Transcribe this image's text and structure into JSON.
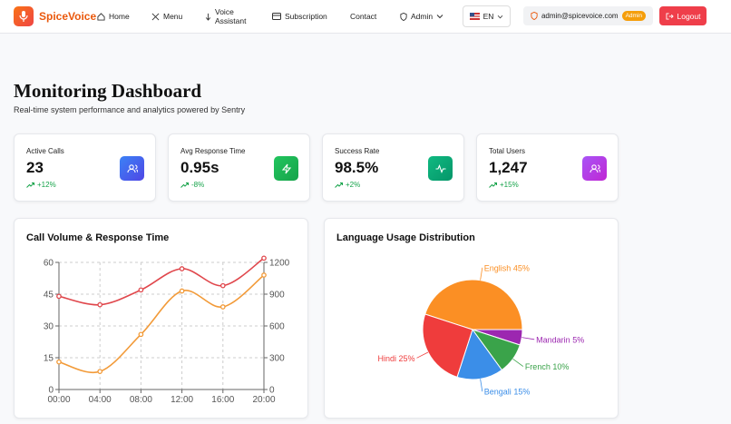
{
  "nav": {
    "brand": "SpiceVoice",
    "links": [
      "Home",
      "Menu",
      "Voice Assistant",
      "Subscription",
      "Contact",
      "Admin"
    ],
    "language": "EN",
    "email": "admin@spicevoice.com",
    "role_badge": "Admin",
    "logout": "Logout"
  },
  "header": {
    "title": "Monitoring Dashboard",
    "subtitle": "Real-time system performance and analytics powered by Sentry"
  },
  "stats": [
    {
      "label": "Active Calls",
      "value": "23",
      "change": "+12%"
    },
    {
      "label": "Avg Response Time",
      "value": "0.95s",
      "change": "-8%"
    },
    {
      "label": "Success Rate",
      "value": "98.5%",
      "change": "+2%"
    },
    {
      "label": "Total Users",
      "value": "1,247",
      "change": "+15%"
    }
  ],
  "charts": [
    {
      "type": "line",
      "title": "Call Volume & Response Time",
      "categories": [
        "00:00",
        "04:00",
        "08:00",
        "12:00",
        "16:00",
        "20:00"
      ],
      "series": [
        {
          "color": "#e0474c",
          "values": [
            44,
            40,
            47,
            57,
            49,
            62
          ]
        },
        {
          "color": "#f29a38",
          "axis": "y2",
          "values": [
            260,
            170,
            520,
            930,
            780,
            1080
          ]
        }
      ],
      "ylim": [
        0,
        60
      ],
      "yticks": [
        0,
        15,
        30,
        45,
        60
      ],
      "y2lim": [
        0,
        1200
      ],
      "y2ticks": [
        0,
        300,
        600,
        900,
        1200
      ],
      "grid": true
    },
    {
      "type": "pie",
      "title": "Language Usage Distribution",
      "categories": [
        "English",
        "Mandarin",
        "French",
        "Bengali",
        "Hindi"
      ],
      "values": [
        45,
        5,
        10,
        15,
        25
      ],
      "value_labels": [
        "45%",
        "5%",
        "10%",
        "15%",
        "25%"
      ],
      "colors": [
        "#fb8f24",
        "#9c27b0",
        "#3aa34a",
        "#3b8ee8",
        "#ef3c3c"
      ]
    }
  ]
}
